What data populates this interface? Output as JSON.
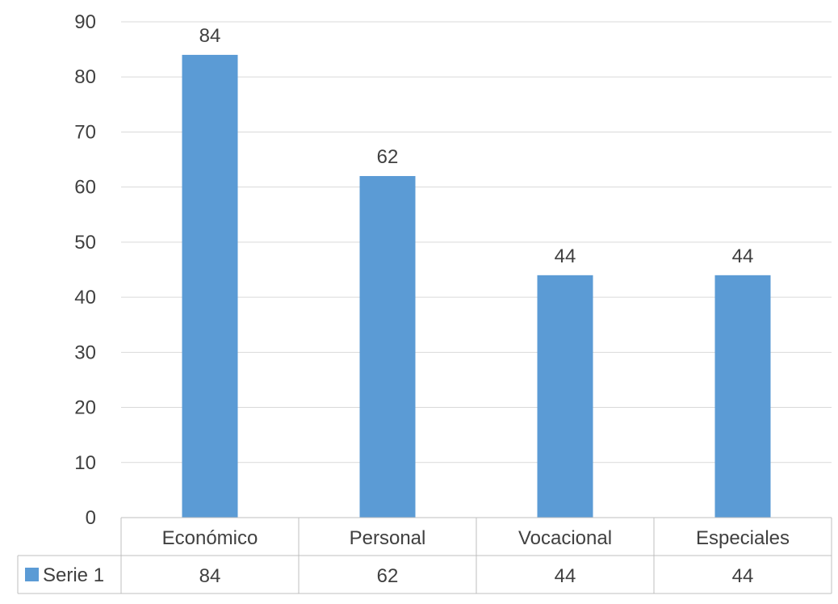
{
  "chart_data": {
    "type": "bar",
    "categories": [
      "Económico",
      "Personal",
      "Vocacional",
      "Especiales"
    ],
    "series": [
      {
        "name": "Serie 1",
        "values": [
          84,
          62,
          44,
          44
        ],
        "color": "#5B9BD5"
      }
    ],
    "y_ticks": [
      "0",
      "10",
      "20",
      "30",
      "40",
      "50",
      "60",
      "70",
      "80",
      "90"
    ],
    "ylim": [
      0,
      90
    ],
    "grid": true,
    "data_labels": true,
    "legend_placement": "data-table-bottom",
    "data_table": {
      "rows": [
        {
          "series": "Serie 1",
          "cells": [
            "84",
            "62",
            "44",
            "44"
          ]
        }
      ]
    }
  }
}
